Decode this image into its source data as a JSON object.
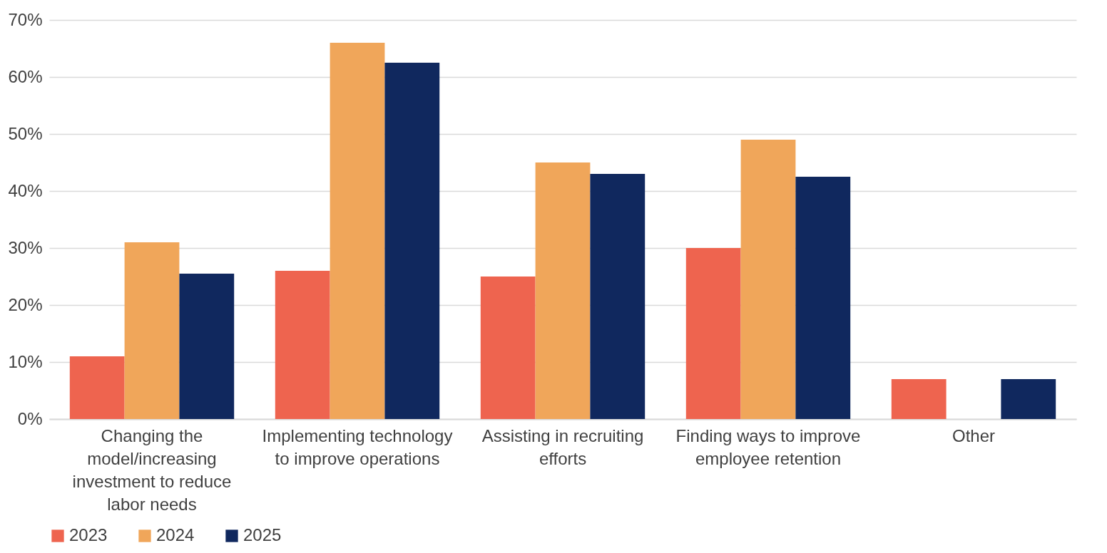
{
  "chart_data": {
    "type": "bar",
    "categories": [
      "Changing the model/increasing investment to reduce labor needs",
      "Implementing technology to improve operations",
      "Assisting in recruiting efforts",
      "Finding ways to improve employee retention",
      "Other"
    ],
    "series": [
      {
        "name": "2023",
        "color": "#ee644f",
        "values": [
          11,
          26,
          25,
          30,
          7
        ]
      },
      {
        "name": "2024",
        "color": "#f0a65a",
        "values": [
          31,
          66,
          45,
          49,
          null
        ]
      },
      {
        "name": "2025",
        "color": "#10285e",
        "values": [
          25.5,
          62.5,
          43,
          42.5,
          7
        ]
      }
    ],
    "ylim": [
      0,
      70
    ],
    "yticks": [
      {
        "value": 0,
        "label": "0%"
      },
      {
        "value": 10,
        "label": "10%"
      },
      {
        "value": 20,
        "label": "20%"
      },
      {
        "value": 30,
        "label": "30%"
      },
      {
        "value": 40,
        "label": "40%"
      },
      {
        "value": 50,
        "label": "50%"
      },
      {
        "value": 60,
        "label": "60%"
      },
      {
        "value": 70,
        "label": "70%"
      }
    ],
    "grid": "y",
    "legend": "bottom"
  }
}
